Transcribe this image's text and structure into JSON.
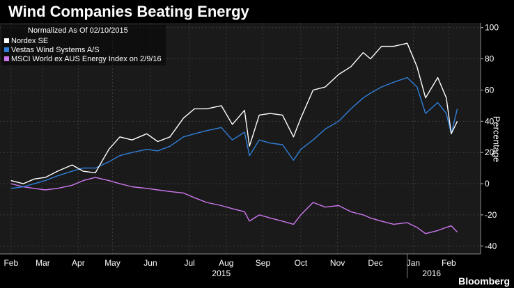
{
  "header": {
    "title": "Wind Companies Beating Energy"
  },
  "legend": {
    "heading": "Normalized As Of 02/10/2015",
    "items": [
      {
        "label": "Nordex SE",
        "color": "#ffffff"
      },
      {
        "label": "Vestas Wind Systems A/S",
        "color": "#2f7fd8"
      },
      {
        "label": "MSCI World ex AUS Energy Index  on 2/9/16",
        "color": "#cc77ee"
      }
    ]
  },
  "footer": {
    "brand": "Bloomberg"
  },
  "chart_data": {
    "type": "line",
    "title": "Wind Companies Beating Energy",
    "ylabel": "Percentage",
    "ylim": [
      -45,
      103
    ],
    "yticks": [
      -40,
      -20,
      0,
      20,
      40,
      60,
      80,
      100
    ],
    "xlim": [
      "2015-02-01",
      "2016-02-29"
    ],
    "xticks": [
      {
        "label": "Feb",
        "date": "2015-02-10"
      },
      {
        "label": "Mar",
        "date": "2015-03-08"
      },
      {
        "label": "Apr",
        "date": "2015-04-06"
      },
      {
        "label": "May",
        "date": "2015-05-04"
      },
      {
        "label": "Jun",
        "date": "2015-06-04"
      },
      {
        "label": "Jul",
        "date": "2015-07-06"
      },
      {
        "label": "Aug",
        "date": "2015-08-05"
      },
      {
        "label": "Sep",
        "date": "2015-09-04"
      },
      {
        "label": "Oct",
        "date": "2015-10-05"
      },
      {
        "label": "Nov",
        "date": "2015-11-04"
      },
      {
        "label": "Dec",
        "date": "2015-12-05"
      },
      {
        "label": "Jan",
        "date": "2016-01-05"
      },
      {
        "label": "Feb",
        "date": "2016-02-03"
      }
    ],
    "year_labels": [
      {
        "label": "2015",
        "date": "2015-08-01"
      },
      {
        "label": "2016",
        "date": "2016-01-20"
      }
    ],
    "year_dividers": [
      "2015-12-31"
    ],
    "grid": true,
    "legend_position": "top-left",
    "series": [
      {
        "name": "Nordex SE",
        "color": "#ffffff",
        "x": [
          "2015-02-10",
          "2015-02-20",
          "2015-03-01",
          "2015-03-10",
          "2015-03-20",
          "2015-04-01",
          "2015-04-10",
          "2015-04-20",
          "2015-05-01",
          "2015-05-10",
          "2015-05-20",
          "2015-06-01",
          "2015-06-10",
          "2015-06-20",
          "2015-07-01",
          "2015-07-10",
          "2015-07-20",
          "2015-08-01",
          "2015-08-10",
          "2015-08-20",
          "2015-08-24",
          "2015-09-01",
          "2015-09-10",
          "2015-09-20",
          "2015-09-29",
          "2015-10-05",
          "2015-10-15",
          "2015-10-25",
          "2015-11-05",
          "2015-11-15",
          "2015-11-25",
          "2015-12-01",
          "2015-12-10",
          "2015-12-20",
          "2015-12-31",
          "2016-01-08",
          "2016-01-15",
          "2016-01-25",
          "2016-02-01",
          "2016-02-05",
          "2016-02-10"
        ],
        "values": [
          2,
          0,
          3,
          4,
          8,
          12,
          8,
          7,
          22,
          30,
          28,
          32,
          27,
          30,
          42,
          48,
          48,
          50,
          38,
          47,
          24,
          44,
          45,
          44,
          30,
          42,
          60,
          62,
          70,
          75,
          84,
          80,
          88,
          88,
          90,
          75,
          55,
          68,
          55,
          32,
          40
        ]
      },
      {
        "name": "Vestas Wind Systems A/S",
        "color": "#2f7fd8",
        "x": [
          "2015-02-10",
          "2015-02-20",
          "2015-03-01",
          "2015-03-10",
          "2015-03-20",
          "2015-04-01",
          "2015-04-10",
          "2015-04-20",
          "2015-05-01",
          "2015-05-10",
          "2015-05-20",
          "2015-06-01",
          "2015-06-10",
          "2015-06-20",
          "2015-07-01",
          "2015-07-10",
          "2015-07-20",
          "2015-08-01",
          "2015-08-10",
          "2015-08-20",
          "2015-08-24",
          "2015-09-01",
          "2015-09-10",
          "2015-09-20",
          "2015-09-29",
          "2015-10-05",
          "2015-10-15",
          "2015-10-25",
          "2015-11-05",
          "2015-11-15",
          "2015-11-25",
          "2015-12-01",
          "2015-12-10",
          "2015-12-20",
          "2015-12-31",
          "2016-01-08",
          "2016-01-15",
          "2016-01-25",
          "2016-02-01",
          "2016-02-05",
          "2016-02-10"
        ],
        "values": [
          -3,
          -2,
          0,
          2,
          5,
          8,
          10,
          10,
          14,
          18,
          20,
          22,
          21,
          24,
          30,
          32,
          34,
          36,
          28,
          33,
          18,
          28,
          26,
          25,
          15,
          22,
          28,
          35,
          40,
          48,
          55,
          58,
          62,
          65,
          68,
          62,
          45,
          52,
          45,
          32,
          48
        ]
      },
      {
        "name": "MSCI World ex AUS Energy Index  on 2/9/16",
        "color": "#cc77ee",
        "x": [
          "2015-02-10",
          "2015-02-20",
          "2015-03-01",
          "2015-03-10",
          "2015-03-20",
          "2015-04-01",
          "2015-04-10",
          "2015-04-20",
          "2015-05-01",
          "2015-05-10",
          "2015-05-20",
          "2015-06-01",
          "2015-06-10",
          "2015-06-20",
          "2015-07-01",
          "2015-07-10",
          "2015-07-20",
          "2015-08-01",
          "2015-08-10",
          "2015-08-20",
          "2015-08-24",
          "2015-09-01",
          "2015-09-10",
          "2015-09-20",
          "2015-09-29",
          "2015-10-05",
          "2015-10-15",
          "2015-10-25",
          "2015-11-05",
          "2015-11-15",
          "2015-11-25",
          "2015-12-01",
          "2015-12-10",
          "2015-12-20",
          "2015-12-31",
          "2016-01-08",
          "2016-01-15",
          "2016-01-25",
          "2016-02-01",
          "2016-02-05",
          "2016-02-10"
        ],
        "values": [
          0,
          -2,
          -3,
          -4,
          -3,
          -1,
          2,
          4,
          2,
          0,
          -2,
          -3,
          -4,
          -5,
          -6,
          -9,
          -12,
          -14,
          -16,
          -18,
          -24,
          -20,
          -22,
          -24,
          -26,
          -20,
          -12,
          -15,
          -14,
          -18,
          -20,
          -22,
          -24,
          -26,
          -25,
          -28,
          -32,
          -30,
          -28,
          -27,
          -31
        ]
      }
    ]
  }
}
